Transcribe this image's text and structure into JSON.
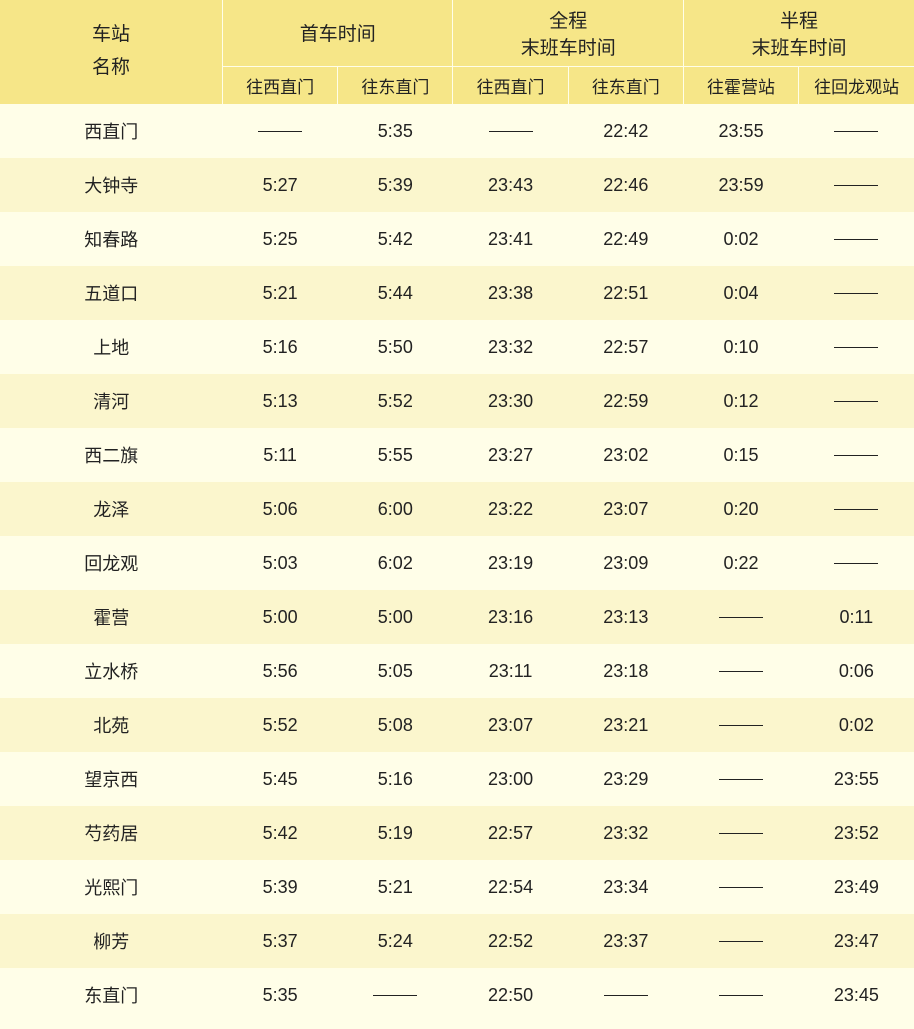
{
  "header": {
    "station_line1": "车站",
    "station_line2": "名称",
    "first_train": "首车时间",
    "full_line1": "全程",
    "full_line2": "末班车时间",
    "half_line1": "半程",
    "half_line2": "末班车时间",
    "to_xizhimen": "往西直门",
    "to_dongzhimen": "往东直门",
    "to_huoying": "往霍营站",
    "to_huilongguan": "往回龙观站"
  },
  "rows": [
    {
      "station": "西直门",
      "c1": "",
      "c2": "5:35",
      "c3": "",
      "c4": "22:42",
      "c5": "23:55",
      "c6": ""
    },
    {
      "station": "大钟寺",
      "c1": "5:27",
      "c2": "5:39",
      "c3": "23:43",
      "c4": "22:46",
      "c5": "23:59",
      "c6": ""
    },
    {
      "station": "知春路",
      "c1": "5:25",
      "c2": "5:42",
      "c3": "23:41",
      "c4": "22:49",
      "c5": "0:02",
      "c6": ""
    },
    {
      "station": "五道口",
      "c1": "5:21",
      "c2": "5:44",
      "c3": "23:38",
      "c4": "22:51",
      "c5": "0:04",
      "c6": ""
    },
    {
      "station": "上地",
      "c1": "5:16",
      "c2": "5:50",
      "c3": "23:32",
      "c4": "22:57",
      "c5": "0:10",
      "c6": ""
    },
    {
      "station": "清河",
      "c1": "5:13",
      "c2": "5:52",
      "c3": "23:30",
      "c4": "22:59",
      "c5": "0:12",
      "c6": ""
    },
    {
      "station": "西二旗",
      "c1": "5:11",
      "c2": "5:55",
      "c3": "23:27",
      "c4": "23:02",
      "c5": "0:15",
      "c6": ""
    },
    {
      "station": "龙泽",
      "c1": "5:06",
      "c2": "6:00",
      "c3": "23:22",
      "c4": "23:07",
      "c5": "0:20",
      "c6": ""
    },
    {
      "station": "回龙观",
      "c1": "5:03",
      "c2": "6:02",
      "c3": "23:19",
      "c4": "23:09",
      "c5": "0:22",
      "c6": ""
    },
    {
      "station": "霍营",
      "c1": "5:00",
      "c2": "5:00",
      "c3": "23:16",
      "c4": "23:13",
      "c5": "",
      "c6": "0:11"
    },
    {
      "station": "立水桥",
      "c1": "5:56",
      "c2": "5:05",
      "c3": "23:11",
      "c4": "23:18",
      "c5": "",
      "c6": "0:06"
    },
    {
      "station": "北苑",
      "c1": "5:52",
      "c2": "5:08",
      "c3": "23:07",
      "c4": "23:21",
      "c5": "",
      "c6": "0:02"
    },
    {
      "station": "望京西",
      "c1": "5:45",
      "c2": "5:16",
      "c3": "23:00",
      "c4": "23:29",
      "c5": "",
      "c6": "23:55"
    },
    {
      "station": "芍药居",
      "c1": "5:42",
      "c2": "5:19",
      "c3": "22:57",
      "c4": "23:32",
      "c5": "",
      "c6": "23:52"
    },
    {
      "station": "光熙门",
      "c1": "5:39",
      "c2": "5:21",
      "c3": "22:54",
      "c4": "23:34",
      "c5": "",
      "c6": "23:49"
    },
    {
      "station": "柳芳",
      "c1": "5:37",
      "c2": "5:24",
      "c3": "22:52",
      "c4": "23:37",
      "c5": "",
      "c6": "23:47"
    },
    {
      "station": "东直门",
      "c1": "5:35",
      "c2": "",
      "c3": "22:50",
      "c4": "",
      "c5": "",
      "c6": "23:45"
    }
  ]
}
